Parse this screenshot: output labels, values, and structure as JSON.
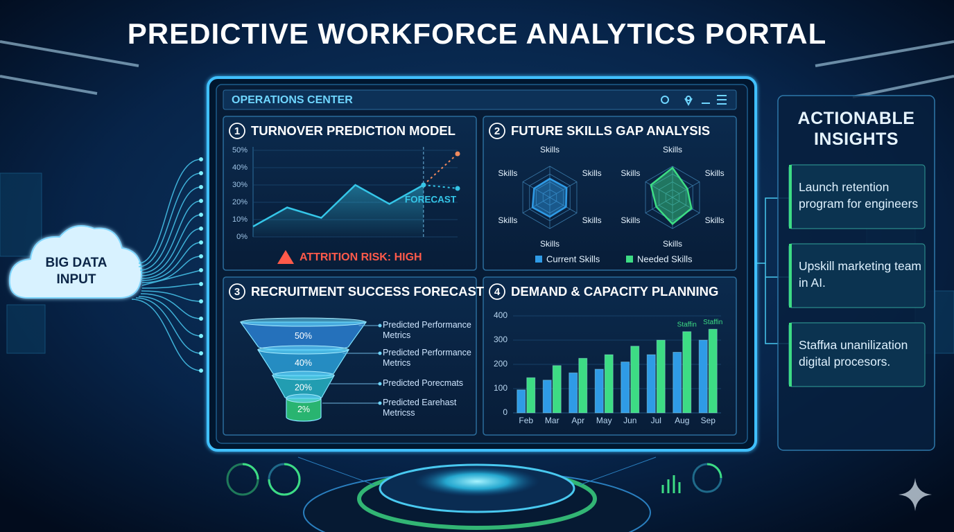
{
  "header": {
    "title": "PREDICTIVE WORKFORCE ANALYTICS PORTAL"
  },
  "input": {
    "label": "BIG DATA INPUT"
  },
  "dashboard": {
    "title": "OPERATIONS CENTER"
  },
  "chart_data": [
    {
      "type": "line",
      "badge": "1",
      "title": "TURNOVER PREDICTION MODEL",
      "categories": [
        null,
        null,
        null,
        null,
        null,
        null,
        null
      ],
      "series": [
        {
          "color": "#35c6e8",
          "values": [
            6,
            17,
            11,
            30,
            19,
            30,
            null
          ]
        },
        {
          "color": "#f08a5d",
          "dashed": true,
          "markers": true,
          "values": [
            null,
            null,
            null,
            null,
            null,
            30,
            48
          ]
        },
        {
          "color": "#35c6e8",
          "dashed": true,
          "markers": true,
          "values": [
            null,
            null,
            null,
            null,
            null,
            30,
            28
          ]
        }
      ],
      "ylim": [
        0,
        50
      ],
      "yticks": [
        {
          "value": 0,
          "label": "0%"
        },
        {
          "value": 10,
          "label": "10%"
        },
        {
          "value": 20,
          "label": "20%"
        },
        {
          "value": 30,
          "label": "30%"
        },
        {
          "value": 40,
          "label": "40%"
        },
        {
          "value": 50,
          "label": "50%"
        }
      ],
      "grid": true,
      "forecast_label": "FORECAST",
      "alert": "ATTRITION RISK: HIGH"
    },
    {
      "type": "radar",
      "badge": "2",
      "title": "FUTURE SKILLS GAP ANALYSIS",
      "categories": [
        "Skills",
        "Skills",
        "Skills",
        "Skills",
        "Skills",
        "Skills"
      ],
      "rlim": [
        0,
        100
      ],
      "series": [
        {
          "name": "Current Skills",
          "color": "#2f9be6",
          "values": [
            60,
            62,
            60,
            62,
            64,
            58
          ]
        },
        {
          "name": "Needed Skills",
          "color": "#3ddc84",
          "values": [
            95,
            55,
            70,
            85,
            60,
            80
          ]
        }
      ]
    },
    {
      "type": "funnel",
      "badge": "3",
      "title": "RECRUITMENT SUCCESS FORECAST",
      "values": [
        50,
        40,
        20,
        2
      ],
      "value_labels": [
        "50%",
        "40%",
        "20%",
        "2%"
      ],
      "categories": [
        "Predicted Performance Metrics",
        "Predicted Performance Metrics",
        "Predicted Porecmats",
        "Predicted Earehast Metricss"
      ],
      "colors": [
        "#2a7fd0",
        "#2a9fd8",
        "#27b3c6",
        "#2fcf7a"
      ]
    },
    {
      "type": "bar",
      "badge": "4",
      "title": "DEMAND & CAPACITY PLANNING",
      "categories": [
        "Feb",
        "Mar",
        "Apr",
        "May",
        "Jun",
        "Jul",
        "Aug",
        "Sep"
      ],
      "series": [
        {
          "color": "#2f9be6",
          "values": [
            95,
            135,
            165,
            180,
            210,
            240,
            250,
            300
          ]
        },
        {
          "color": "#3ddc84",
          "values": [
            145,
            195,
            225,
            240,
            275,
            300,
            335,
            345
          ]
        }
      ],
      "ylim": [
        0,
        400
      ],
      "yticks": [
        0,
        100,
        200,
        300,
        400
      ],
      "grid": true,
      "annotations": [
        {
          "text": "Staffin",
          "category": "Aug"
        },
        {
          "text": "Staffin",
          "category": "Sep"
        }
      ]
    }
  ],
  "insights": {
    "title": "ACTIONABLE INSIGHTS",
    "items": [
      "Launch retention program for engineers",
      "Upskill marketing team in AI.",
      "Staffиa unanilization digital procesors."
    ]
  }
}
